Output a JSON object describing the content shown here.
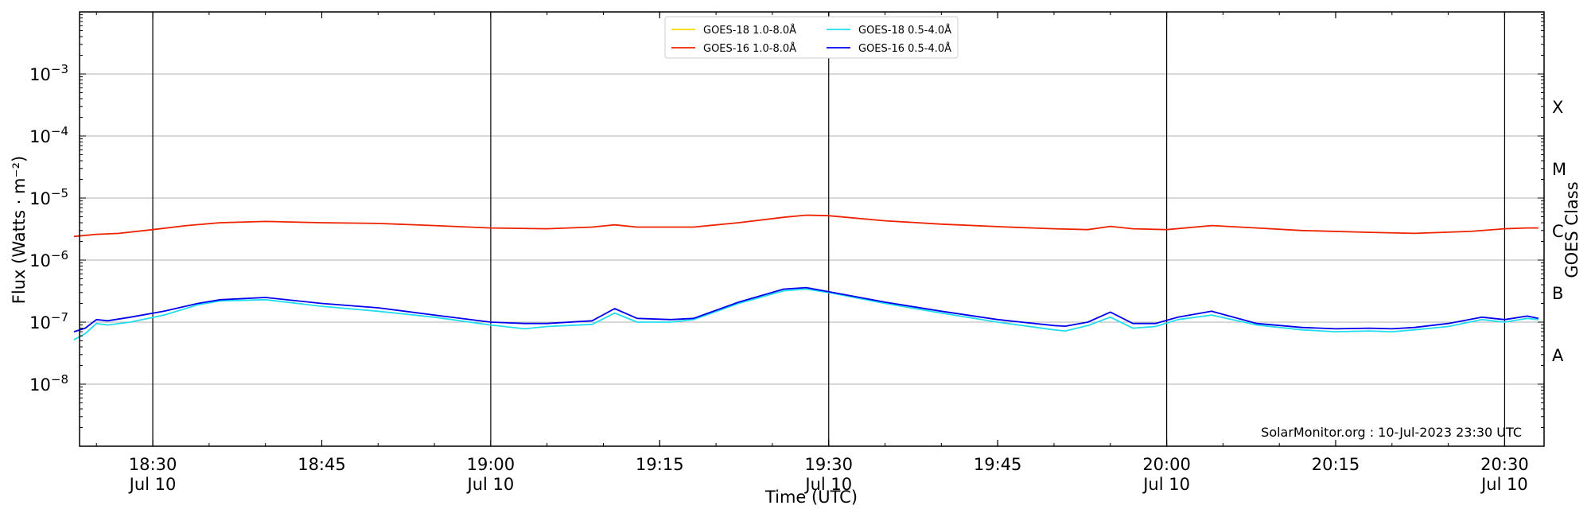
{
  "chart_data": {
    "type": "line",
    "x_axis": {
      "label": "Time (UTC)",
      "ticks": [
        {
          "time": "18:30",
          "date": "Jul 10"
        },
        {
          "time": "18:45",
          "date": ""
        },
        {
          "time": "19:00",
          "date": "Jul 10"
        },
        {
          "time": "19:15",
          "date": ""
        },
        {
          "time": "19:30",
          "date": "Jul 10"
        },
        {
          "time": "19:45",
          "date": ""
        },
        {
          "time": "20:00",
          "date": "Jul 10"
        },
        {
          "time": "20:15",
          "date": ""
        },
        {
          "time": "20:30",
          "date": "Jul 10"
        }
      ],
      "range": [
        "18:23:30",
        "20:33:30"
      ]
    },
    "y_axis": {
      "label": "Flux (Watts · m⁻²)",
      "scale": "log",
      "range": [
        1e-09,
        0.01
      ],
      "ticks": [
        {
          "value": 0.001,
          "base": "10",
          "exp": "−3"
        },
        {
          "value": 0.0001,
          "base": "10",
          "exp": "−4"
        },
        {
          "value": 1e-05,
          "base": "10",
          "exp": "−5"
        },
        {
          "value": 1e-06,
          "base": "10",
          "exp": "−6"
        },
        {
          "value": 1e-07,
          "base": "10",
          "exp": "−7"
        },
        {
          "value": 1e-08,
          "base": "10",
          "exp": "−8"
        }
      ]
    },
    "right_axis": {
      "label": "GOES Class",
      "classes": [
        {
          "label": "X",
          "value": 0.0003
        },
        {
          "label": "M",
          "value": 3e-05
        },
        {
          "label": "C",
          "value": 3e-06
        },
        {
          "label": "B",
          "value": 3e-07
        },
        {
          "label": "A",
          "value": 3e-08
        }
      ]
    },
    "grid": "horizontal at decades; vertical markers at 18:30, 19:00, 19:30, 20:00, 20:30",
    "vertical_markers": [
      "18:30",
      "19:00",
      "19:30",
      "20:00",
      "20:30"
    ],
    "legend_placement": "top-center",
    "credit": "SolarMonitor.org : 10-Jul-2023 23:30 UTC",
    "series": [
      {
        "name": "GOES-18 1.0-8.0Å",
        "color": "#FFD700",
        "legend_col": 0,
        "legend_row": 0,
        "points": []
      },
      {
        "name": "GOES-16 1.0-8.0Å",
        "color": "#EE2200",
        "legend_col": 0,
        "legend_row": 1,
        "points": [
          [
            "18:23",
            2.4e-06
          ],
          [
            "18:25",
            2.6e-06
          ],
          [
            "18:27",
            2.7e-06
          ],
          [
            "18:30",
            3.1e-06
          ],
          [
            "18:33",
            3.6e-06
          ],
          [
            "18:36",
            4e-06
          ],
          [
            "18:40",
            4.2e-06
          ],
          [
            "18:45",
            4e-06
          ],
          [
            "18:50",
            3.9e-06
          ],
          [
            "18:55",
            3.6e-06
          ],
          [
            "19:00",
            3.3e-06
          ],
          [
            "19:05",
            3.2e-06
          ],
          [
            "19:09",
            3.4e-06
          ],
          [
            "19:11",
            3.7e-06
          ],
          [
            "19:13",
            3.4e-06
          ],
          [
            "19:18",
            3.4e-06
          ],
          [
            "19:22",
            4e-06
          ],
          [
            "19:26",
            4.9e-06
          ],
          [
            "19:28",
            5.3e-06
          ],
          [
            "19:30",
            5.2e-06
          ],
          [
            "19:35",
            4.3e-06
          ],
          [
            "19:40",
            3.8e-06
          ],
          [
            "19:46",
            3.4e-06
          ],
          [
            "19:50",
            3.2e-06
          ],
          [
            "19:53",
            3.1e-06
          ],
          [
            "19:55",
            3.5e-06
          ],
          [
            "19:57",
            3.2e-06
          ],
          [
            "20:00",
            3.1e-06
          ],
          [
            "20:04",
            3.6e-06
          ],
          [
            "20:08",
            3.3e-06
          ],
          [
            "20:12",
            3e-06
          ],
          [
            "20:18",
            2.8e-06
          ],
          [
            "20:22",
            2.7e-06
          ],
          [
            "20:27",
            2.9e-06
          ],
          [
            "20:30",
            3.2e-06
          ],
          [
            "20:32",
            3.3e-06
          ],
          [
            "20:33",
            3.3e-06
          ]
        ]
      },
      {
        "name": "GOES-18 0.5-4.0Å",
        "color": "#22DDEE",
        "legend_col": 1,
        "legend_row": 0,
        "points": [
          [
            "18:23",
            5.2e-08
          ],
          [
            "18:24",
            6.5e-08
          ],
          [
            "18:25",
            9.5e-08
          ],
          [
            "18:26",
            9e-08
          ],
          [
            "18:28",
            1e-07
          ],
          [
            "18:31",
            1.3e-07
          ],
          [
            "18:34",
            1.9e-07
          ],
          [
            "18:36",
            2.2e-07
          ],
          [
            "18:40",
            2.3e-07
          ],
          [
            "18:45",
            1.8e-07
          ],
          [
            "18:50",
            1.5e-07
          ],
          [
            "18:55",
            1.2e-07
          ],
          [
            "19:00",
            9e-08
          ],
          [
            "19:03",
            7.8e-08
          ],
          [
            "19:05",
            8.5e-08
          ],
          [
            "19:09",
            9.2e-08
          ],
          [
            "19:11",
            1.4e-07
          ],
          [
            "19:13",
            1e-07
          ],
          [
            "19:16",
            1e-07
          ],
          [
            "19:18",
            1.1e-07
          ],
          [
            "19:22",
            2e-07
          ],
          [
            "19:26",
            3.2e-07
          ],
          [
            "19:28",
            3.4e-07
          ],
          [
            "19:30",
            3e-07
          ],
          [
            "19:35",
            2e-07
          ],
          [
            "19:40",
            1.4e-07
          ],
          [
            "19:45",
            1e-07
          ],
          [
            "19:50",
            7.5e-08
          ],
          [
            "19:51",
            7.2e-08
          ],
          [
            "19:53",
            8.8e-08
          ],
          [
            "19:55",
            1.2e-07
          ],
          [
            "19:57",
            8e-08
          ],
          [
            "19:59",
            8.5e-08
          ],
          [
            "20:01",
            1.1e-07
          ],
          [
            "20:04",
            1.3e-07
          ],
          [
            "20:08",
            9e-08
          ],
          [
            "20:12",
            7.5e-08
          ],
          [
            "20:15",
            7e-08
          ],
          [
            "20:18",
            7.2e-08
          ],
          [
            "20:20",
            7e-08
          ],
          [
            "20:22",
            7.5e-08
          ],
          [
            "20:25",
            8.5e-08
          ],
          [
            "20:28",
            1.1e-07
          ],
          [
            "20:30",
            1e-07
          ],
          [
            "20:32",
            1.15e-07
          ],
          [
            "20:33",
            1.1e-07
          ]
        ]
      },
      {
        "name": "GOES-16 0.5-4.0Å",
        "color": "#0000EE",
        "legend_col": 1,
        "legend_row": 1,
        "points": [
          [
            "18:23",
            7e-08
          ],
          [
            "18:24",
            8e-08
          ],
          [
            "18:25",
            1.1e-07
          ],
          [
            "18:26",
            1.05e-07
          ],
          [
            "18:28",
            1.2e-07
          ],
          [
            "18:31",
            1.5e-07
          ],
          [
            "18:34",
            2e-07
          ],
          [
            "18:36",
            2.3e-07
          ],
          [
            "18:40",
            2.5e-07
          ],
          [
            "18:45",
            2e-07
          ],
          [
            "18:50",
            1.7e-07
          ],
          [
            "18:55",
            1.3e-07
          ],
          [
            "19:00",
            1e-07
          ],
          [
            "19:03",
            9.5e-08
          ],
          [
            "19:05",
            9.5e-08
          ],
          [
            "19:09",
            1.05e-07
          ],
          [
            "19:11",
            1.65e-07
          ],
          [
            "19:13",
            1.15e-07
          ],
          [
            "19:16",
            1.1e-07
          ],
          [
            "19:18",
            1.15e-07
          ],
          [
            "19:22",
            2.1e-07
          ],
          [
            "19:26",
            3.4e-07
          ],
          [
            "19:28",
            3.6e-07
          ],
          [
            "19:30",
            3.1e-07
          ],
          [
            "19:35",
            2.1e-07
          ],
          [
            "19:40",
            1.5e-07
          ],
          [
            "19:45",
            1.1e-07
          ],
          [
            "19:50",
            8.8e-08
          ],
          [
            "19:51",
            8.6e-08
          ],
          [
            "19:53",
            1e-07
          ],
          [
            "19:55",
            1.45e-07
          ],
          [
            "19:57",
            9.5e-08
          ],
          [
            "19:59",
            9.5e-08
          ],
          [
            "20:01",
            1.2e-07
          ],
          [
            "20:04",
            1.5e-07
          ],
          [
            "20:08",
            9.5e-08
          ],
          [
            "20:12",
            8.2e-08
          ],
          [
            "20:15",
            7.8e-08
          ],
          [
            "20:18",
            8e-08
          ],
          [
            "20:20",
            7.8e-08
          ],
          [
            "20:22",
            8.2e-08
          ],
          [
            "20:25",
            9.5e-08
          ],
          [
            "20:28",
            1.2e-07
          ],
          [
            "20:30",
            1.1e-07
          ],
          [
            "20:32",
            1.25e-07
          ],
          [
            "20:33",
            1.15e-07
          ]
        ]
      }
    ]
  }
}
